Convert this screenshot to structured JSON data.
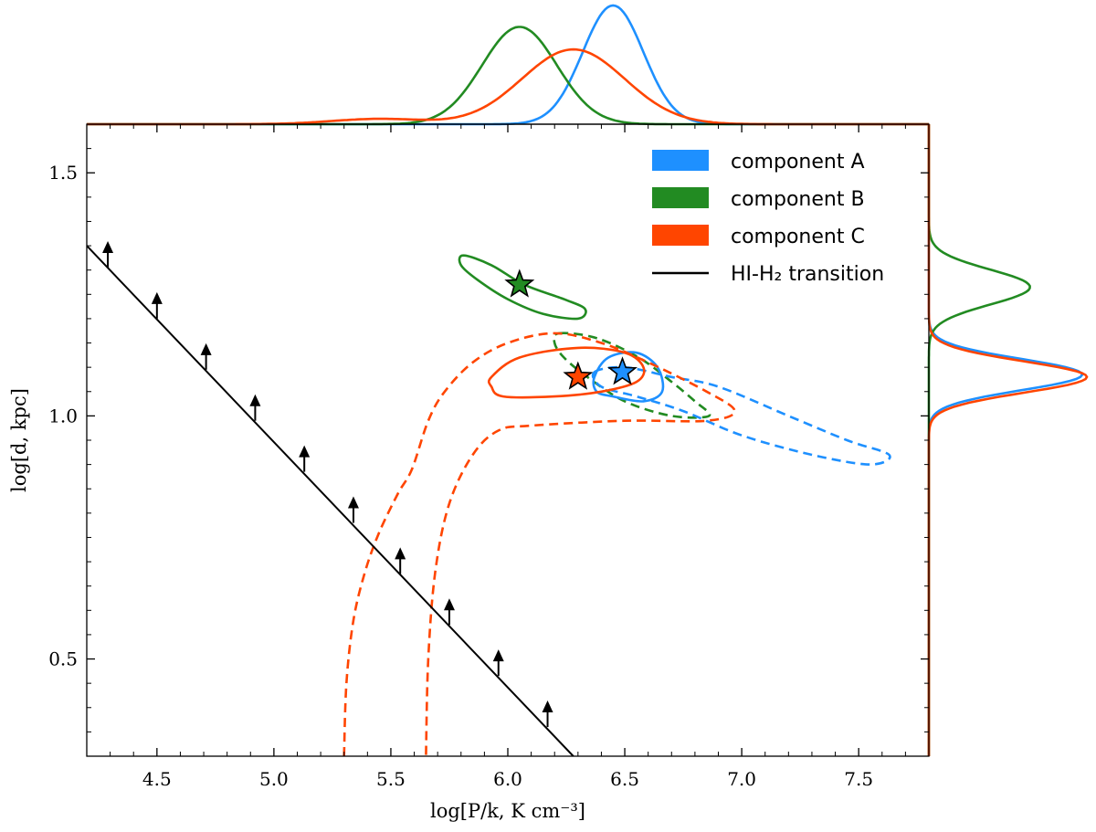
{
  "chart_data": {
    "type": "scatter",
    "xlabel": "log[P/k, K cm⁻³]",
    "ylabel": "log[d, kpc]",
    "xlim": [
      4.2,
      7.8
    ],
    "ylim": [
      0.3,
      1.6
    ],
    "xticks": [
      "4.5",
      "5.0",
      "5.5",
      "6.0",
      "6.5",
      "7.0",
      "7.5"
    ],
    "xtick_values": [
      4.5,
      5.0,
      5.5,
      6.0,
      6.5,
      7.0,
      7.5
    ],
    "yticks": [
      "0.5",
      "1.0",
      "1.5"
    ],
    "ytick_values": [
      0.5,
      1.0,
      1.5
    ],
    "colors": {
      "A": "#1e90ff",
      "B": "#228b22",
      "C": "#ff4500",
      "line": "#000000"
    },
    "legend_position": "top-right",
    "legend": [
      {
        "key": "A",
        "label": "component A",
        "style": "patch"
      },
      {
        "key": "B",
        "label": "component B",
        "style": "patch"
      },
      {
        "key": "C",
        "label": "component C",
        "style": "patch"
      },
      {
        "key": "line",
        "label": "HI-H₂ transition",
        "style": "line"
      }
    ],
    "best_fit": [
      {
        "key": "A",
        "x": 6.49,
        "y": 1.09
      },
      {
        "key": "B",
        "x": 6.05,
        "y": 1.27
      },
      {
        "key": "C",
        "x": 6.3,
        "y": 1.08
      }
    ],
    "contours": [
      {
        "key": "B",
        "style": "solid",
        "points": [
          [
            5.81,
            1.33
          ],
          [
            5.93,
            1.31
          ],
          [
            6.07,
            1.27
          ],
          [
            6.24,
            1.24
          ],
          [
            6.33,
            1.22
          ],
          [
            6.3,
            1.2
          ],
          [
            6.15,
            1.21
          ],
          [
            6.0,
            1.24
          ],
          [
            5.87,
            1.28
          ],
          [
            5.8,
            1.31
          ]
        ]
      },
      {
        "key": "B",
        "style": "dashed",
        "points": [
          [
            6.22,
            1.17
          ],
          [
            6.38,
            1.16
          ],
          [
            6.56,
            1.12
          ],
          [
            6.7,
            1.07
          ],
          [
            6.8,
            1.03
          ],
          [
            6.86,
            1.0
          ],
          [
            6.7,
            1.0
          ],
          [
            6.5,
            1.03
          ],
          [
            6.34,
            1.08
          ],
          [
            6.24,
            1.12
          ],
          [
            6.2,
            1.15
          ]
        ]
      },
      {
        "key": "A",
        "style": "solid",
        "points": [
          [
            6.37,
            1.08
          ],
          [
            6.43,
            1.12
          ],
          [
            6.55,
            1.13
          ],
          [
            6.64,
            1.1
          ],
          [
            6.66,
            1.05
          ],
          [
            6.58,
            1.03
          ],
          [
            6.45,
            1.04
          ],
          [
            6.38,
            1.05
          ]
        ]
      },
      {
        "key": "A",
        "style": "dashed",
        "points": [
          [
            6.37,
            1.09
          ],
          [
            6.5,
            1.1
          ],
          [
            6.7,
            1.08
          ],
          [
            6.9,
            1.06
          ],
          [
            7.2,
            1.0
          ],
          [
            7.45,
            0.95
          ],
          [
            7.63,
            0.92
          ],
          [
            7.55,
            0.9
          ],
          [
            7.3,
            0.92
          ],
          [
            7.0,
            0.96
          ],
          [
            6.75,
            1.01
          ],
          [
            6.55,
            1.04
          ],
          [
            6.4,
            1.06
          ]
        ]
      },
      {
        "key": "C",
        "style": "solid",
        "points": [
          [
            5.93,
            1.08
          ],
          [
            6.05,
            1.12
          ],
          [
            6.3,
            1.14
          ],
          [
            6.5,
            1.13
          ],
          [
            6.58,
            1.1
          ],
          [
            6.55,
            1.07
          ],
          [
            6.4,
            1.05
          ],
          [
            6.2,
            1.04
          ],
          [
            5.98,
            1.04
          ],
          [
            5.93,
            1.06
          ]
        ]
      },
      {
        "key": "C",
        "style": "dashed",
        "points": [
          [
            5.3,
            0.3
          ],
          [
            5.31,
            0.45
          ],
          [
            5.34,
            0.58
          ],
          [
            5.39,
            0.68
          ],
          [
            5.45,
            0.76
          ],
          [
            5.53,
            0.84
          ],
          [
            5.59,
            0.89
          ],
          [
            5.66,
            0.99
          ],
          [
            5.73,
            1.05
          ],
          [
            5.85,
            1.11
          ],
          [
            6.0,
            1.15
          ],
          [
            6.2,
            1.17
          ],
          [
            6.4,
            1.15
          ],
          [
            6.6,
            1.11
          ],
          [
            6.85,
            1.05
          ],
          [
            6.97,
            1.01
          ],
          [
            6.85,
            0.99
          ],
          [
            6.5,
            0.99
          ],
          [
            6.1,
            0.98
          ],
          [
            5.96,
            0.97
          ],
          [
            5.85,
            0.92
          ],
          [
            5.75,
            0.82
          ],
          [
            5.69,
            0.68
          ],
          [
            5.66,
            0.5
          ],
          [
            5.65,
            0.3
          ]
        ]
      }
    ],
    "transition_line": {
      "x": [
        4.2,
        6.28
      ],
      "y": [
        1.35,
        0.3
      ]
    },
    "lower_limits": [
      {
        "x": 4.29,
        "y": 1.305
      },
      {
        "x": 4.5,
        "y": 1.2
      },
      {
        "x": 4.71,
        "y": 1.095
      },
      {
        "x": 4.92,
        "y": 0.99
      },
      {
        "x": 5.13,
        "y": 0.885
      },
      {
        "x": 5.34,
        "y": 0.78
      },
      {
        "x": 5.54,
        "y": 0.675
      },
      {
        "x": 5.75,
        "y": 0.57
      },
      {
        "x": 5.96,
        "y": 0.465
      },
      {
        "x": 6.17,
        "y": 0.36
      }
    ],
    "top_marginal": [
      {
        "key": "A",
        "peaks": [
          {
            "mu": 6.45,
            "sigma": 0.13,
            "amp": 1.0
          }
        ]
      },
      {
        "key": "B",
        "peaks": [
          {
            "mu": 6.05,
            "sigma": 0.16,
            "amp": 0.82
          }
        ]
      },
      {
        "key": "C",
        "peaks": [
          {
            "mu": 6.28,
            "sigma": 0.22,
            "amp": 0.63
          },
          {
            "mu": 5.45,
            "sigma": 0.2,
            "amp": 0.045
          }
        ]
      }
    ],
    "right_marginal": [
      {
        "key": "A",
        "peaks": [
          {
            "mu": 1.085,
            "sigma": 0.032,
            "amp": 0.97
          }
        ]
      },
      {
        "key": "B",
        "peaks": [
          {
            "mu": 1.265,
            "sigma": 0.036,
            "amp": 0.64
          }
        ]
      },
      {
        "key": "C",
        "peaks": [
          {
            "mu": 1.08,
            "sigma": 0.032,
            "amp": 1.0
          }
        ]
      }
    ]
  }
}
